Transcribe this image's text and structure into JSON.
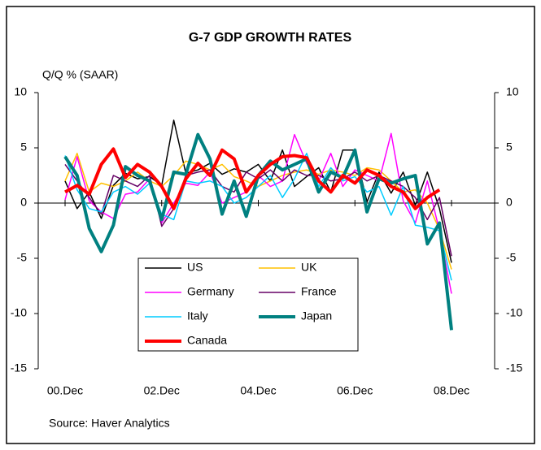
{
  "chart_data": {
    "type": "line",
    "title": "G-7 GDP GROWTH RATES",
    "y_label": "Q/Q % (SAAR)",
    "source": "Source: Haver Analytics",
    "categories": [
      "00.Dec",
      null,
      null,
      null,
      null,
      null,
      null,
      null,
      "02.Dec",
      null,
      null,
      null,
      null,
      null,
      null,
      null,
      "04.Dec",
      null,
      null,
      null,
      null,
      null,
      null,
      null,
      "06.Dec",
      null,
      null,
      null,
      null,
      null,
      null,
      null,
      "08.Dec"
    ],
    "ylim": [
      -15,
      10
    ],
    "yticks": [
      10,
      5,
      0,
      -5,
      -10,
      -15
    ],
    "y2lim": [
      -15,
      10
    ],
    "y2ticks": [
      10,
      5,
      0,
      -5,
      -10,
      -15
    ],
    "series": [
      {
        "name": "US",
        "color": "#000000",
        "width": 1.5,
        "values": [
          2.0,
          -0.5,
          1.0,
          -1.4,
          1.6,
          2.7,
          2.2,
          2.4,
          1.6,
          7.5,
          2.7,
          3.0,
          3.6,
          2.6,
          3.1,
          2.8,
          3.5,
          2.0,
          4.8,
          1.5,
          2.4,
          3.2,
          1.0,
          4.8,
          4.8,
          0.1,
          2.8,
          0.9,
          2.8,
          -0.2,
          2.8,
          -0.5,
          -5.4
        ]
      },
      {
        "name": "UK",
        "color": "#ffc000",
        "width": 1.5,
        "values": [
          2.0,
          4.5,
          1.0,
          1.8,
          1.5,
          2.0,
          2.8,
          2.0,
          1.5,
          2.5,
          3.8,
          3.5,
          3.0,
          3.5,
          2.4,
          2.0,
          1.5,
          2.0,
          2.5,
          2.8,
          3.0,
          2.6,
          3.0,
          2.8,
          2.5,
          3.2,
          3.0,
          2.0,
          1.0,
          1.2,
          0.0,
          -2.4,
          -6.0
        ]
      },
      {
        "name": "Germany",
        "color": "#ff00ff",
        "width": 1.5,
        "values": [
          0.3,
          4.2,
          0.2,
          -0.8,
          -1.4,
          0.8,
          1.0,
          2.2,
          -1.8,
          0.0,
          1.8,
          1.6,
          2.8,
          0.0,
          0.5,
          1.0,
          2.5,
          1.5,
          2.0,
          6.2,
          3.6,
          2.0,
          4.5,
          1.5,
          3.0,
          2.5,
          2.0,
          6.3,
          0.2,
          -1.8,
          2.0,
          -2.5,
          -8.2
        ]
      },
      {
        "name": "France",
        "color": "#660066",
        "width": 1.5,
        "values": [
          3.5,
          2.0,
          0.5,
          -1.0,
          2.5,
          2.0,
          1.5,
          2.5,
          -2.1,
          -0.5,
          2.5,
          2.8,
          3.0,
          1.5,
          1.0,
          2.8,
          2.2,
          3.0,
          2.0,
          3.0,
          2.5,
          2.5,
          2.0,
          2.2,
          2.8,
          2.0,
          2.5,
          2.0,
          1.5,
          0.5,
          -1.5,
          0.5,
          -4.8
        ]
      },
      {
        "name": "Italy",
        "color": "#00ccff",
        "width": 1.5,
        "values": [
          4.3,
          1.2,
          -0.5,
          -0.8,
          1.0,
          1.5,
          0.8,
          1.8,
          -1.0,
          -1.5,
          2.0,
          1.8,
          2.0,
          1.5,
          0.0,
          0.5,
          1.5,
          2.5,
          0.5,
          2.2,
          4.5,
          1.5,
          3.2,
          2.0,
          2.4,
          1.0,
          1.5,
          -1.1,
          1.5,
          -2.0,
          -2.2,
          -2.5,
          -7.0
        ]
      },
      {
        "name": "Japan",
        "color": "#008080",
        "width": 4,
        "values": [
          4.2,
          2.5,
          -2.3,
          -4.4,
          -2.0,
          3.3,
          2.5,
          2.0,
          -1.5,
          2.8,
          2.6,
          6.2,
          4.0,
          -1.0,
          2.0,
          -1.2,
          2.5,
          3.8,
          3.0,
          3.5,
          4.0,
          1.0,
          2.8,
          2.3,
          4.8,
          -0.8,
          2.2,
          1.8,
          2.2,
          2.5,
          -3.7,
          -1.8,
          -11.5
        ]
      },
      {
        "name": "Canada",
        "color": "#ff0000",
        "width": 4,
        "values": [
          1.0,
          1.6,
          0.8,
          3.5,
          4.9,
          2.3,
          3.5,
          2.8,
          1.5,
          -0.5,
          2.2,
          3.6,
          2.5,
          4.8,
          4.0,
          1.0,
          2.5,
          3.5,
          4.2,
          4.3,
          4.1,
          2.0,
          1.0,
          2.5,
          1.8,
          3.0,
          2.5,
          1.5,
          1.0,
          -0.5,
          0.5,
          1.2,
          null
        ]
      }
    ]
  }
}
